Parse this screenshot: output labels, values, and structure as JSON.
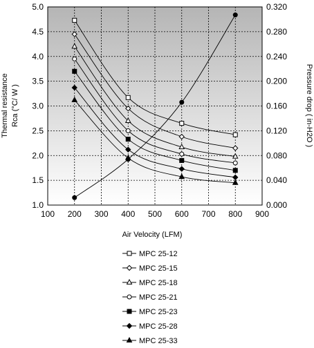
{
  "chart_data": {
    "type": "line",
    "xlabel": "Air Velocity (LFM)",
    "ylabel_lines": [
      "Thermal resistance",
      "Rca (°C/ W )"
    ],
    "y2label": "Pressure drop ( in-H2O )",
    "xlim": [
      100,
      900
    ],
    "ylim": [
      1.0,
      5.0
    ],
    "y2lim": [
      0.0,
      0.32
    ],
    "x_ticks": [
      "100",
      "200",
      "300",
      "400",
      "500",
      "600",
      "700",
      "800",
      "900"
    ],
    "y_ticks": [
      "1.0",
      "1.5",
      "2.0",
      "2.5",
      "3.0",
      "3.5",
      "4.0",
      "4.5",
      "5.0"
    ],
    "y2_ticks": [
      "0.000",
      "0.040",
      "0.080",
      "0.120",
      "0.160",
      "0.200",
      "0.240",
      "0.280",
      "0.320"
    ],
    "grid": true,
    "legend_position": "bottom",
    "x": [
      200,
      400,
      600,
      800
    ],
    "series": [
      {
        "name": "MPC 25-12",
        "marker": "square-open",
        "values": [
          4.73,
          3.17,
          2.65,
          2.42
        ]
      },
      {
        "name": "MPC 25-15",
        "marker": "diamond-open",
        "values": [
          4.45,
          2.95,
          2.38,
          2.15
        ]
      },
      {
        "name": "MPC 25-18",
        "marker": "triangle-open",
        "values": [
          4.2,
          2.7,
          2.17,
          1.98
        ]
      },
      {
        "name": "MPC 25-21",
        "marker": "circle-open",
        "values": [
          3.95,
          2.5,
          2.03,
          1.85
        ]
      },
      {
        "name": "MPC 25-23",
        "marker": "square-filled",
        "values": [
          3.7,
          2.33,
          1.9,
          1.7
        ]
      },
      {
        "name": "MPC 25-28",
        "marker": "diamond-filled",
        "values": [
          3.37,
          2.12,
          1.73,
          1.56
        ]
      },
      {
        "name": "MPC 25-33",
        "marker": "triangle-filled",
        "values": [
          3.12,
          1.95,
          1.57,
          1.45
        ]
      }
    ],
    "pressure_series": {
      "axis": "right",
      "marker": "circle-filled",
      "x": [
        200,
        400,
        600,
        800
      ],
      "values": [
        0.012,
        0.074,
        0.166,
        0.307
      ]
    }
  }
}
